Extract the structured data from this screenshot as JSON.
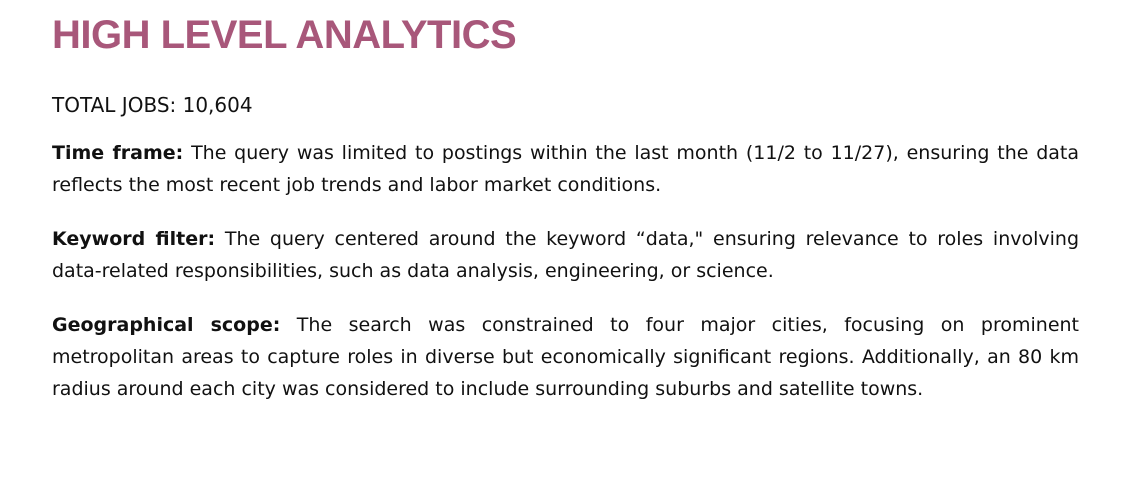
{
  "title": "HIGH LEVEL ANALYTICS",
  "total_jobs": "TOTAL JOBS: 10,604",
  "sections": [
    {
      "label": "Time frame:",
      "text": "The query was limited to postings within the last month (11/2 to 11/27), ensuring the data reflects the most recent job trends and labor market conditions."
    },
    {
      "label": "Keyword filter:",
      "text": "The query centered around the keyword “data,\" ensuring relevance to roles involving data-related responsibilities, such as data analysis, engineering, or science."
    },
    {
      "label": "Geographical scope:",
      "text": "The search was constrained to four major cities, focusing on prominent metropolitan areas to capture roles in diverse but economically significant regions. Additionally, an 80 km radius around each city was considered to include surrounding suburbs and satellite towns."
    }
  ],
  "colors": {
    "title": "#a8577a",
    "text": "#111111",
    "background": "#ffffff"
  }
}
